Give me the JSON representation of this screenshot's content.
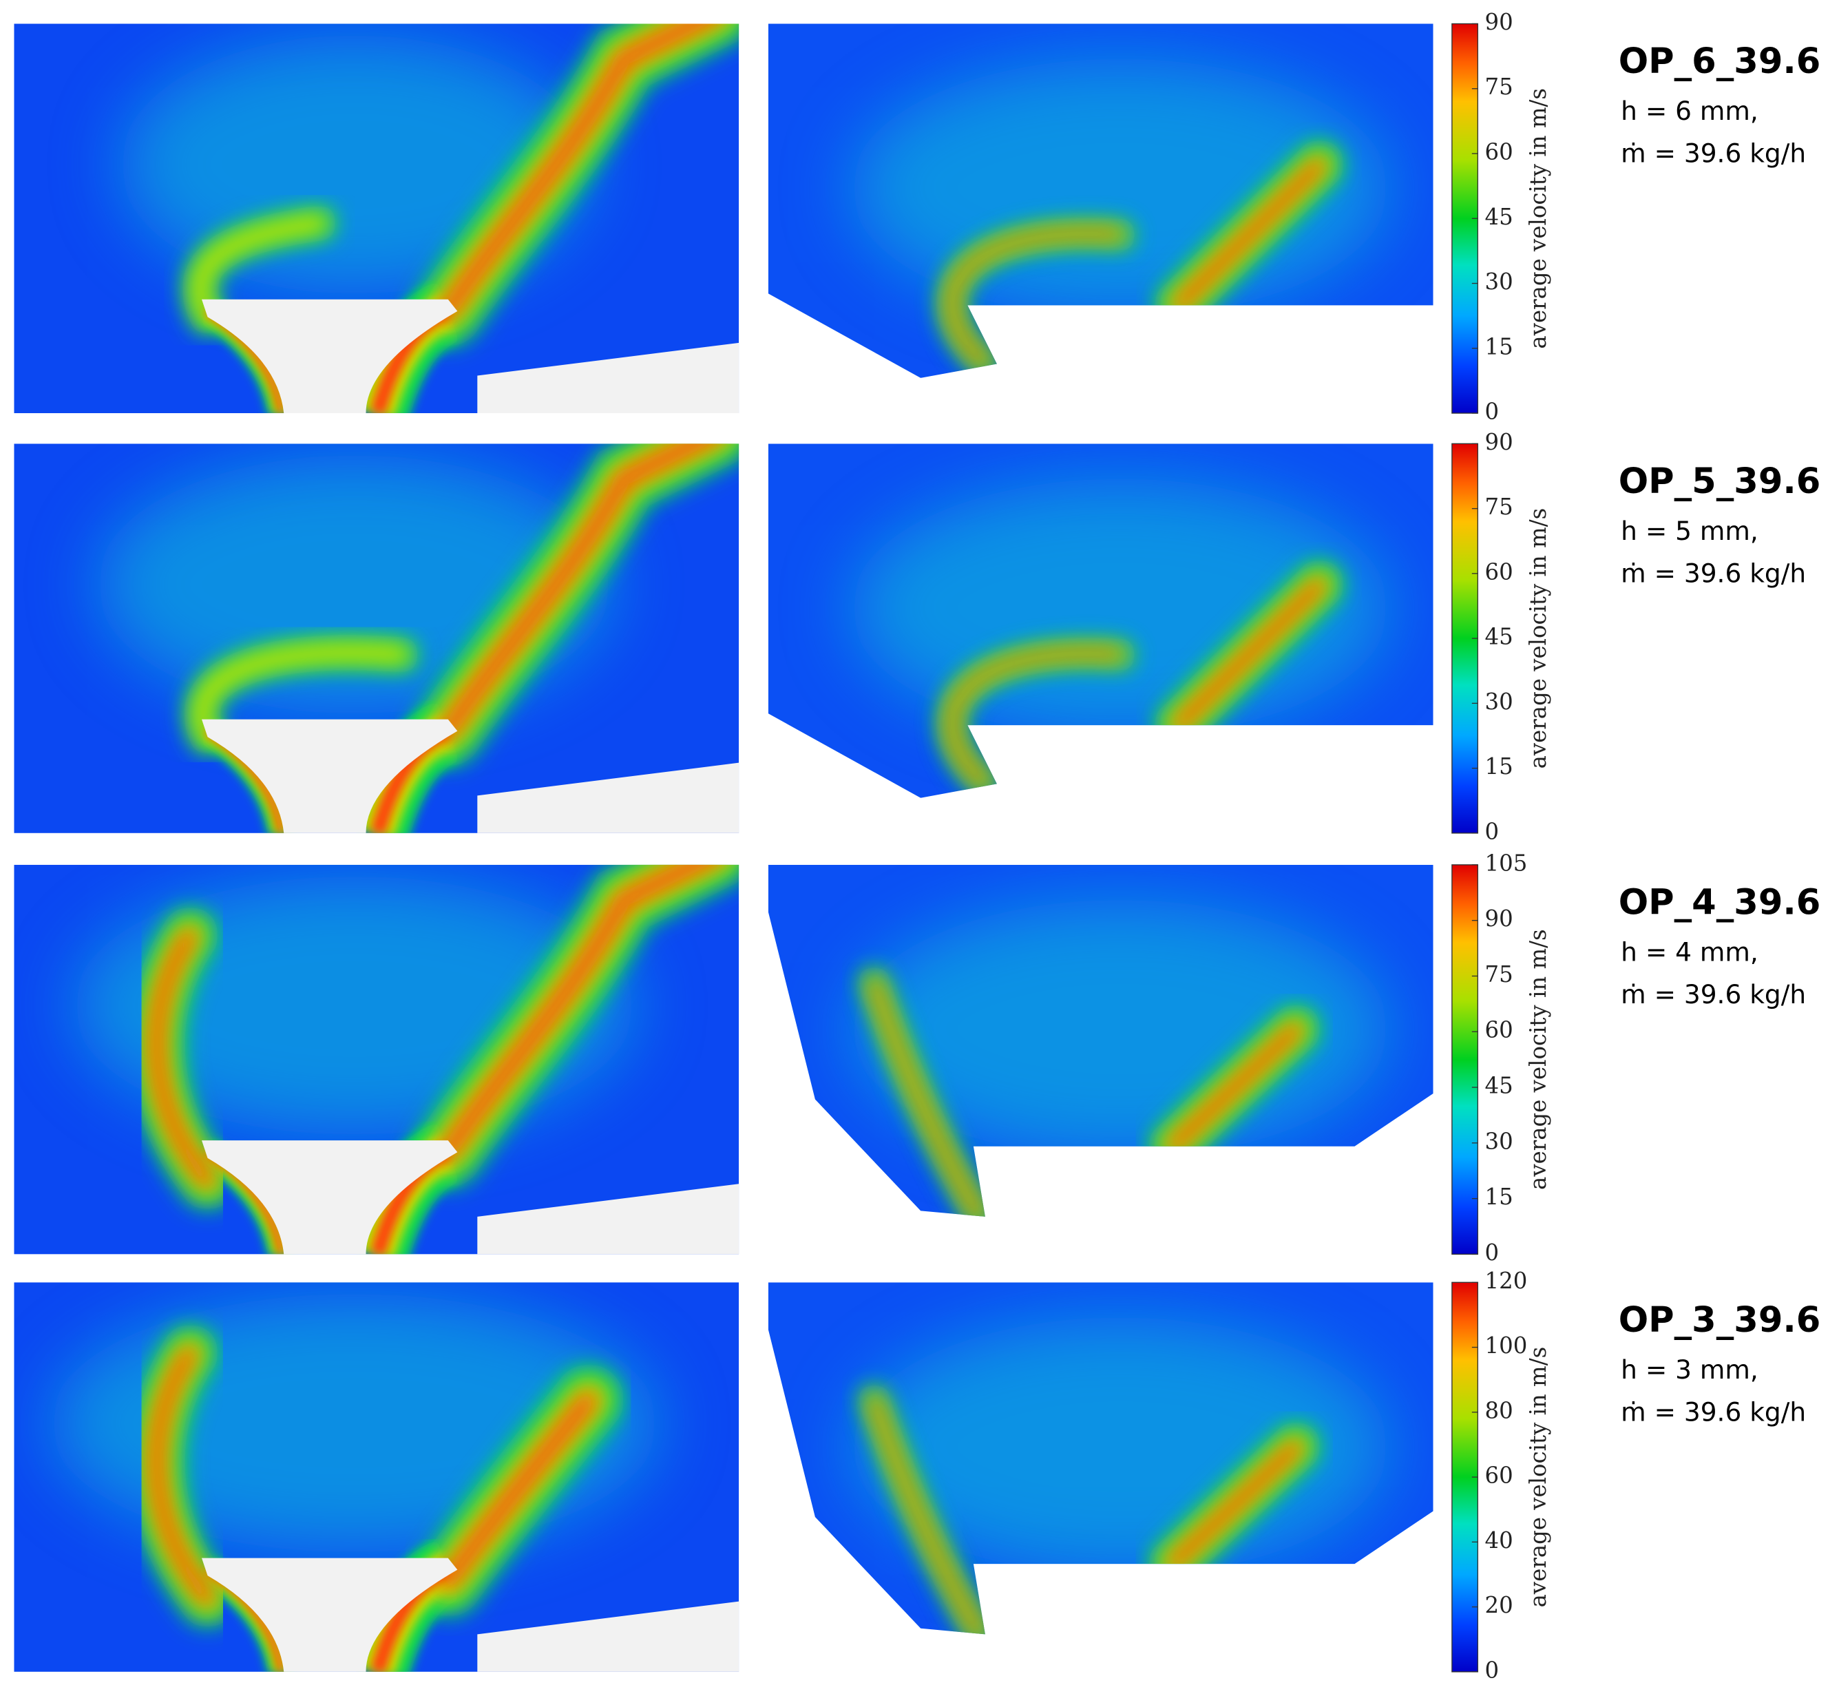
{
  "panels": [
    {
      "title": "OP_6_39.6",
      "h": "h = 6 mm,",
      "mdot": "ṁ = 39.6 kg/h",
      "colorbar": {
        "label": "average velocity in m/s",
        "lim": [
          0,
          90
        ],
        "ticks": [
          0,
          15,
          30,
          45,
          60,
          75,
          90
        ]
      }
    },
    {
      "title": "OP_5_39.6",
      "h": "h = 5 mm,",
      "mdot": "ṁ = 39.6 kg/h",
      "colorbar": {
        "label": "average velocity in m/s",
        "lim": [
          0,
          90
        ],
        "ticks": [
          0,
          15,
          30,
          45,
          60,
          75,
          90
        ]
      }
    },
    {
      "title": "OP_4_39.6",
      "h": "h = 4 mm,",
      "mdot": "ṁ = 39.6 kg/h",
      "colorbar": {
        "label": "average velocity in m/s",
        "lim": [
          0,
          105
        ],
        "ticks": [
          0,
          15,
          30,
          45,
          60,
          75,
          90,
          105
        ]
      }
    },
    {
      "title": "OP_3_39.6",
      "h": "h = 3 mm,",
      "mdot": "ṁ = 39.6 kg/h",
      "colorbar": {
        "label": "average velocity in m/s",
        "lim": [
          0,
          120
        ],
        "ticks": [
          0,
          20,
          40,
          60,
          80,
          100,
          120
        ]
      }
    }
  ]
}
